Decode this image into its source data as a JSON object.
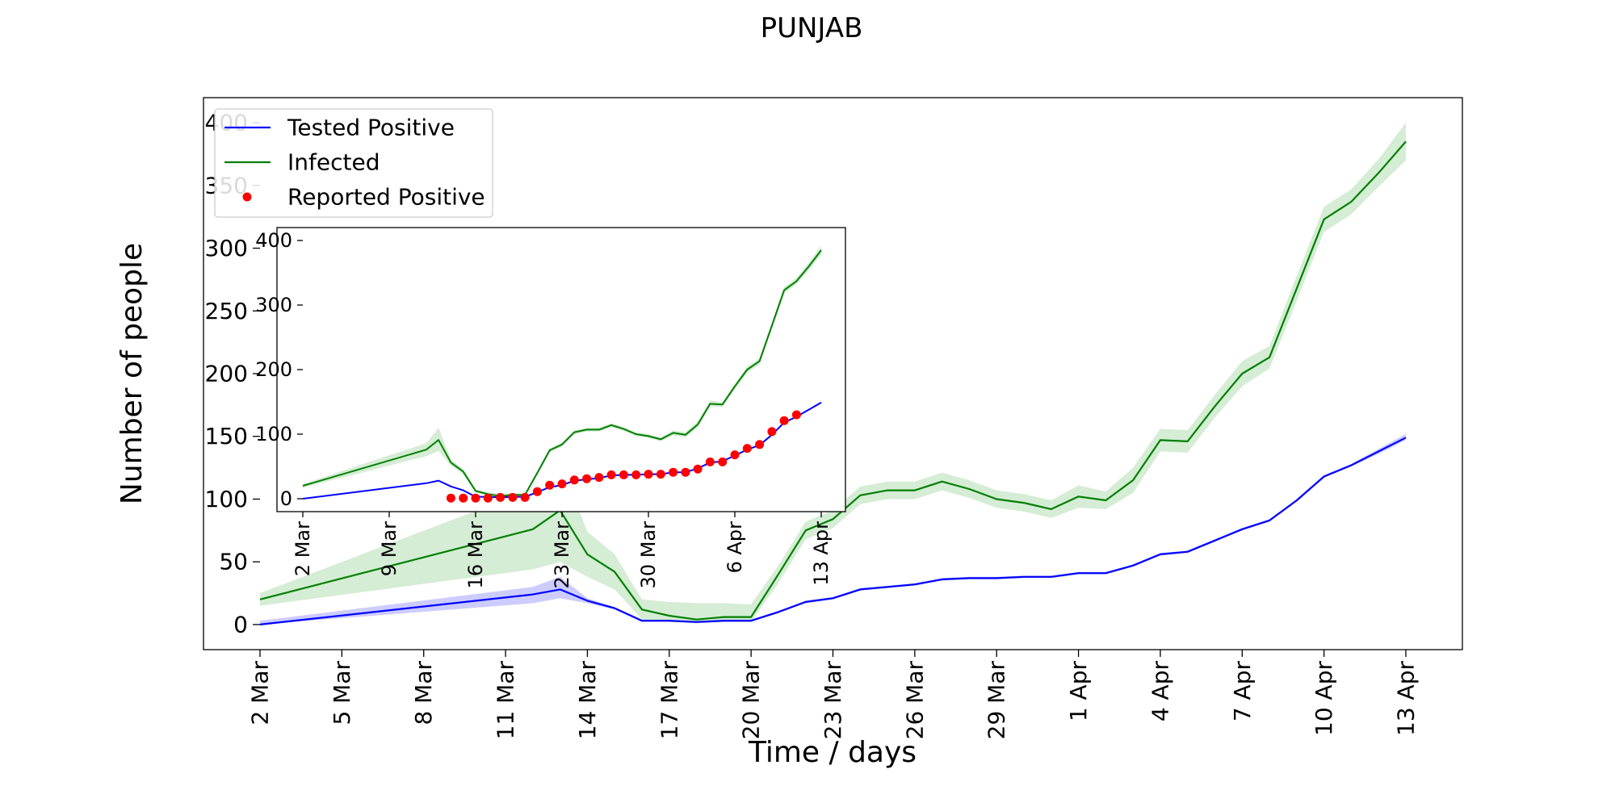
{
  "title": "PUNJAB",
  "chart_data": [
    {
      "id": "main",
      "type": "line",
      "title": "PUNJAB",
      "xlabel": "Time / days",
      "ylabel": "Number of people",
      "x_ticks": [
        "2 Mar",
        "5 Mar",
        "8 Mar",
        "11 Mar",
        "14 Mar",
        "17 Mar",
        "20 Mar",
        "23 Mar",
        "26 Mar",
        "29 Mar",
        "1 Apr",
        "4 Apr",
        "7 Apr",
        "10 Apr",
        "13 Apr"
      ],
      "y_ticks": [
        0,
        50,
        100,
        150,
        200,
        250,
        300,
        350,
        400
      ],
      "xlim": [
        "2020-03-02",
        "2020-04-13"
      ],
      "ylim": [
        -20,
        420
      ],
      "grid": false,
      "legend_position": "upper-left",
      "x": [
        "2020-03-02",
        "2020-03-12",
        "2020-03-13",
        "2020-03-14",
        "2020-03-15",
        "2020-03-16",
        "2020-03-17",
        "2020-03-18",
        "2020-03-19",
        "2020-03-20",
        "2020-03-21",
        "2020-03-22",
        "2020-03-23",
        "2020-03-24",
        "2020-03-25",
        "2020-03-26",
        "2020-03-27",
        "2020-03-28",
        "2020-03-29",
        "2020-03-30",
        "2020-03-31",
        "2020-04-01",
        "2020-04-02",
        "2020-04-03",
        "2020-04-04",
        "2020-04-05",
        "2020-04-06",
        "2020-04-07",
        "2020-04-08",
        "2020-04-09",
        "2020-04-10",
        "2020-04-11",
        "2020-04-12",
        "2020-04-13"
      ],
      "series": [
        {
          "name": "Tested Positive",
          "color": "#0000ff",
          "band_color": "#0000ff",
          "values": [
            0,
            24,
            28,
            19,
            13,
            3,
            3,
            2,
            3,
            3,
            10,
            18,
            21,
            28,
            30,
            32,
            36,
            37,
            37,
            38,
            38,
            41,
            41,
            47,
            56,
            58,
            67,
            76,
            83,
            99,
            118,
            127,
            138,
            149
          ],
          "lower": [
            0,
            17,
            21,
            17,
            12,
            2,
            2,
            2,
            2,
            2,
            9,
            17,
            20,
            27,
            29,
            31,
            35,
            36,
            36,
            37,
            37,
            40,
            40,
            46,
            55,
            57,
            66,
            75,
            82,
            98,
            117,
            126,
            136,
            147
          ],
          "upper": [
            3,
            30,
            38,
            21,
            14,
            4,
            4,
            3,
            4,
            4,
            11,
            19,
            22,
            29,
            31,
            33,
            37,
            38,
            38,
            39,
            39,
            42,
            42,
            48,
            57,
            59,
            68,
            77,
            84,
            100,
            119,
            128,
            140,
            152
          ]
        },
        {
          "name": "Infected",
          "color": "#008000",
          "band_color": "#2ca02c",
          "values": [
            20,
            76,
            91,
            56,
            42,
            12,
            7,
            4,
            6,
            6,
            40,
            75,
            84,
            103,
            107,
            107,
            114,
            108,
            100,
            97,
            92,
            102,
            99,
            115,
            147,
            146,
            174,
            200,
            213,
            268,
            323,
            337,
            360,
            385
          ],
          "lower": [
            15,
            44,
            50,
            38,
            28,
            4,
            2,
            1,
            2,
            2,
            33,
            68,
            77,
            96,
            100,
            100,
            107,
            101,
            93,
            90,
            85,
            93,
            92,
            105,
            138,
            137,
            165,
            190,
            204,
            258,
            313,
            327,
            349,
            370
          ],
          "upper": [
            25,
            108,
            130,
            74,
            56,
            20,
            18,
            17,
            17,
            16,
            47,
            82,
            91,
            110,
            114,
            114,
            121,
            115,
            107,
            104,
            99,
            111,
            106,
            125,
            156,
            155,
            183,
            210,
            222,
            278,
            333,
            347,
            371,
            400
          ]
        }
      ]
    },
    {
      "id": "inset",
      "type": "line",
      "x_ticks": [
        "2 Mar",
        "9 Mar",
        "16 Mar",
        "23 Mar",
        "30 Mar",
        "6 Apr",
        "13 Apr"
      ],
      "y_ticks": [
        0,
        100,
        200,
        300,
        400
      ],
      "xlim": [
        "2020-03-02",
        "2020-04-13"
      ],
      "ylim": [
        -20,
        420
      ],
      "x": [
        "2020-03-02",
        "2020-03-12",
        "2020-03-13",
        "2020-03-14",
        "2020-03-15",
        "2020-03-16",
        "2020-03-17",
        "2020-03-18",
        "2020-03-19",
        "2020-03-20",
        "2020-03-21",
        "2020-03-22",
        "2020-03-23",
        "2020-03-24",
        "2020-03-25",
        "2020-03-26",
        "2020-03-27",
        "2020-03-28",
        "2020-03-29",
        "2020-03-30",
        "2020-03-31",
        "2020-04-01",
        "2020-04-02",
        "2020-04-03",
        "2020-04-04",
        "2020-04-05",
        "2020-04-06",
        "2020-04-07",
        "2020-04-08",
        "2020-04-09",
        "2020-04-10",
        "2020-04-11",
        "2020-04-12",
        "2020-04-13"
      ],
      "series": [
        {
          "name": "Tested Positive",
          "color": "#0000ff",
          "values": [
            0,
            24,
            28,
            19,
            13,
            3,
            3,
            2,
            3,
            3,
            10,
            18,
            21,
            28,
            30,
            32,
            36,
            37,
            37,
            38,
            38,
            41,
            41,
            47,
            56,
            58,
            67,
            76,
            83,
            99,
            118,
            127,
            138,
            149
          ]
        },
        {
          "name": "Infected",
          "color": "#008000",
          "band_color": "#2ca02c",
          "values": [
            20,
            76,
            91,
            56,
            42,
            12,
            7,
            4,
            6,
            6,
            40,
            75,
            84,
            103,
            107,
            107,
            114,
            108,
            100,
            97,
            92,
            102,
            99,
            115,
            147,
            146,
            174,
            200,
            213,
            268,
            323,
            337,
            360,
            385
          ],
          "lower": [
            17,
            66,
            74,
            51,
            38,
            10,
            5,
            3,
            4,
            4,
            37,
            72,
            81,
            100,
            104,
            104,
            111,
            105,
            97,
            94,
            89,
            98,
            95,
            110,
            143,
            142,
            170,
            195,
            208,
            263,
            318,
            332,
            354,
            378
          ],
          "upper": [
            23,
            86,
            110,
            61,
            46,
            14,
            10,
            8,
            9,
            8,
            43,
            78,
            87,
            106,
            110,
            110,
            117,
            111,
            103,
            100,
            95,
            106,
            103,
            120,
            152,
            150,
            178,
            205,
            218,
            273,
            328,
            342,
            366,
            392
          ]
        }
      ],
      "points": {
        "name": "Reported Positive",
        "color": "#ff0000",
        "x": [
          "2020-03-14",
          "2020-03-15",
          "2020-03-16",
          "2020-03-17",
          "2020-03-18",
          "2020-03-19",
          "2020-03-20",
          "2020-03-21",
          "2020-03-22",
          "2020-03-23",
          "2020-03-24",
          "2020-03-25",
          "2020-03-26",
          "2020-03-27",
          "2020-03-28",
          "2020-03-29",
          "2020-03-30",
          "2020-03-31",
          "2020-04-01",
          "2020-04-02",
          "2020-04-03",
          "2020-04-04",
          "2020-04-05",
          "2020-04-06",
          "2020-04-07",
          "2020-04-08",
          "2020-04-09",
          "2020-04-10",
          "2020-04-11"
        ],
        "values": [
          1,
          1,
          1,
          1,
          2,
          2,
          2,
          11,
          21,
          23,
          29,
          31,
          33,
          37,
          37,
          37,
          38,
          38,
          41,
          41,
          46,
          57,
          57,
          68,
          78,
          84,
          104,
          121,
          130
        ]
      }
    }
  ],
  "legend": [
    {
      "label": "Tested Positive",
      "kind": "line",
      "color": "#0000ff"
    },
    {
      "label": "Infected",
      "kind": "line",
      "color": "#008000"
    },
    {
      "label": "Reported Positive",
      "kind": "dot",
      "color": "#ff0000"
    }
  ]
}
